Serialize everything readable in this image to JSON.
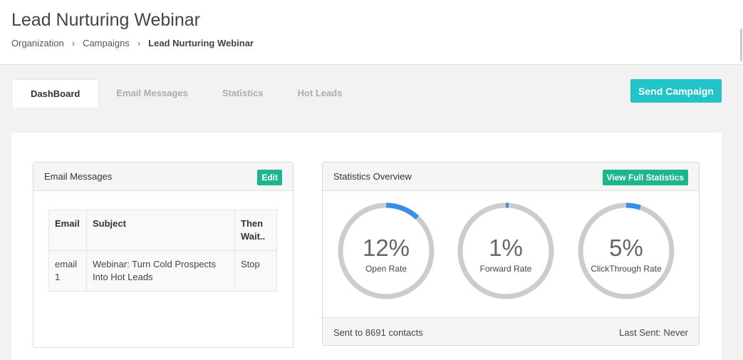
{
  "header": {
    "title": "Lead Nurturing Webinar",
    "breadcrumb": [
      "Organization",
      "Campaigns",
      "Lead Nurturing Webinar"
    ],
    "breadcrumb_separator": "›"
  },
  "tabs": [
    {
      "label": "DashBoard",
      "active": true
    },
    {
      "label": "Email Messages",
      "active": false
    },
    {
      "label": "Statistics",
      "active": false
    },
    {
      "label": "Hot Leads",
      "active": false
    }
  ],
  "send_button": "Send Campaign",
  "email_panel": {
    "title": "Email Messages",
    "edit_label": "Edit",
    "columns": [
      "Email",
      "Subject",
      "Then Wait.."
    ],
    "rows": [
      {
        "email": "email 1",
        "subject": "Webinar: Turn Cold Prospects Into Hot Leads",
        "wait": "Stop"
      }
    ]
  },
  "stats_panel": {
    "title": "Statistics Overview",
    "view_label": "View Full Statistics",
    "gauges": [
      {
        "value": "12%",
        "label": "Open Rate",
        "fraction": 0.12
      },
      {
        "value": "1%",
        "label": "Forward Rate",
        "fraction": 0.01
      },
      {
        "value": "5%",
        "label": "ClickThrough Rate",
        "fraction": 0.05
      }
    ],
    "sent_text": "Sent to 8691 contacts",
    "last_sent_text": "Last Sent: Never"
  },
  "colors": {
    "accent": "#23c4c9",
    "green": "#1bb58e",
    "gauge_track": "#cccccc",
    "gauge_fill": "#3a8ee6"
  }
}
